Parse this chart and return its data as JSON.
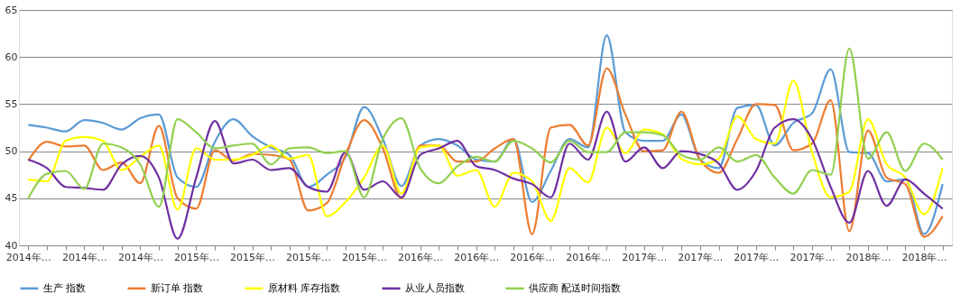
{
  "chart_data": {
    "type": "line",
    "categories": [
      "2014年…",
      null,
      null,
      "2014年…",
      null,
      null,
      "2014年…",
      null,
      null,
      "2015年…",
      null,
      null,
      "2015年…",
      null,
      null,
      "2015年…",
      null,
      null,
      "2015年…",
      null,
      null,
      "2016年…",
      null,
      null,
      "2016年…",
      null,
      null,
      "2016年…",
      null,
      null,
      "2016年…",
      null,
      null,
      "2017年…",
      null,
      null,
      "2017年…",
      null,
      null,
      "2017年…",
      null,
      null,
      "2017年…",
      null,
      null,
      "2018年…",
      null,
      null,
      "2018年…",
      null
    ],
    "series": [
      {
        "name": "生产 指数",
        "color": "#5b9bd5",
        "values": [
          52.8,
          52.5,
          52.1,
          53.3,
          53.0,
          52.3,
          53.5,
          53.9,
          47.2,
          46.2,
          51.0,
          53.4,
          51.6,
          50.4,
          49.6,
          46.2,
          47.5,
          49.4,
          54.7,
          51.3,
          46.3,
          50.6,
          51.3,
          50.6,
          49.1,
          48.9,
          51.3,
          44.6,
          47.9,
          51.3,
          50.4,
          62.3,
          52.0,
          51.1,
          51.1,
          53.9,
          49.1,
          48.2,
          54.6,
          54.9,
          50.6,
          53.0,
          54.0,
          58.7,
          49.9,
          49.8,
          46.8,
          47.0,
          41.2,
          46.5
        ]
      },
      {
        "name": "新订单 指数",
        "color": "#ed7d31",
        "values": [
          49.0,
          51.0,
          50.5,
          50.6,
          48.0,
          48.8,
          46.6,
          52.7,
          45.0,
          43.9,
          50.1,
          49.0,
          49.7,
          49.6,
          49.1,
          43.7,
          44.5,
          49.6,
          53.3,
          50.3,
          45.0,
          50.6,
          50.6,
          48.9,
          48.9,
          50.3,
          51.3,
          41.2,
          52.5,
          52.8,
          50.6,
          58.8,
          53.9,
          50.0,
          50.1,
          54.2,
          49.1,
          47.7,
          51.3,
          55.0,
          54.9,
          50.1,
          50.8,
          55.4,
          41.5,
          52.2,
          47.2,
          46.5,
          40.9,
          43.1
        ]
      },
      {
        "name": "原材料 库存指数",
        "color": "#ffff00",
        "values": [
          47.0,
          46.8,
          51.1,
          51.5,
          51.1,
          48.0,
          49.4,
          50.6,
          43.8,
          50.3,
          49.1,
          49.1,
          49.6,
          50.6,
          49.2,
          49.6,
          43.1,
          44.6,
          47.2,
          50.6,
          45.5,
          50.4,
          50.6,
          47.4,
          48.0,
          44.1,
          47.7,
          46.8,
          42.6,
          48.2,
          46.7,
          52.5,
          49.8,
          52.3,
          51.8,
          49.2,
          48.6,
          49.2,
          53.7,
          51.3,
          50.8,
          57.5,
          49.9,
          45.1,
          45.7,
          53.4,
          48.6,
          47.2,
          43.3,
          48.2
        ]
      },
      {
        "name": "从业人员指数",
        "color": "#7030a0",
        "values": [
          49.1,
          48.2,
          46.2,
          46.1,
          45.9,
          48.6,
          49.5,
          47.2,
          40.7,
          47.2,
          53.2,
          48.7,
          49.1,
          48.0,
          48.2,
          46.2,
          45.7,
          49.9,
          45.9,
          46.8,
          45.1,
          49.6,
          50.3,
          51.1,
          48.4,
          48.0,
          47.1,
          46.5,
          45.1,
          50.8,
          49.1,
          54.2,
          48.9,
          50.4,
          48.2,
          50.0,
          49.7,
          48.7,
          45.9,
          47.9,
          52.5,
          53.4,
          51.3,
          46.2,
          42.4,
          47.9,
          44.2,
          47.0,
          45.5,
          43.9
        ]
      },
      {
        "name": "供应商 配送时间指数",
        "color": "#92d050",
        "values": [
          45.0,
          47.6,
          47.9,
          46.0,
          50.8,
          50.4,
          48.6,
          44.1,
          53.4,
          52.0,
          50.3,
          50.6,
          50.8,
          48.6,
          50.3,
          50.4,
          49.8,
          50.0,
          45.1,
          51.3,
          53.5,
          48.2,
          46.6,
          48.4,
          49.4,
          48.9,
          51.1,
          50.3,
          48.8,
          51.1,
          49.9,
          49.9,
          52.0,
          52.0,
          51.7,
          49.6,
          49.1,
          50.4,
          48.9,
          49.6,
          47.2,
          45.5,
          48.0,
          47.5,
          60.9,
          49.2,
          52.0,
          47.9,
          50.8,
          49.1
        ]
      }
    ],
    "ylim": [
      40,
      65
    ],
    "yticks": [
      40,
      45,
      50,
      55,
      60,
      65
    ],
    "grid": "y",
    "legend": "bottom"
  }
}
